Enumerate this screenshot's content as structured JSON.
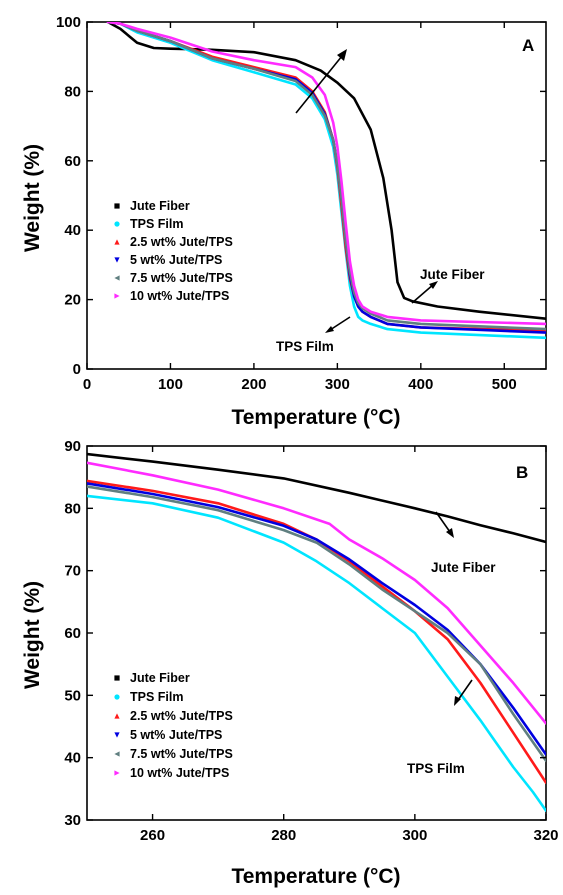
{
  "chart_data": [
    {
      "type": "line",
      "panel_label": "A",
      "xlabel": "Temperature (°C)",
      "ylabel": "Weight (%)",
      "xlim": [
        0,
        550
      ],
      "ylim": [
        0,
        100
      ],
      "xticks": [
        0,
        100,
        200,
        300,
        400,
        500
      ],
      "yticks": [
        0,
        20,
        40,
        60,
        80,
        100
      ],
      "legend_position": "bottom-left",
      "series": [
        {
          "name": "Jute Fiber",
          "color": "#000000",
          "x": [
            25,
            40,
            60,
            80,
            100,
            120,
            150,
            200,
            250,
            280,
            300,
            320,
            340,
            355,
            365,
            372,
            380,
            390,
            420,
            470,
            550
          ],
          "y": [
            100,
            98,
            94,
            92.5,
            92.3,
            92.2,
            92,
            91.3,
            89,
            86,
            82.5,
            78,
            69,
            55,
            40,
            25,
            20.5,
            19.5,
            18,
            16.5,
            14.5
          ]
        },
        {
          "name": "TPS Film",
          "color": "#00e5ff",
          "x": [
            25,
            40,
            60,
            100,
            150,
            200,
            250,
            270,
            285,
            295,
            300,
            305,
            310,
            315,
            320,
            325,
            330,
            340,
            360,
            400,
            550
          ],
          "y": [
            100,
            99.5,
            97,
            94,
            89,
            85.5,
            82,
            78,
            72,
            64,
            56,
            45,
            34,
            24,
            18,
            15,
            14,
            13,
            11.5,
            10.5,
            9
          ]
        },
        {
          "name": "2.5 wt% Jute/TPS",
          "color": "#ff1a1a",
          "x": [
            25,
            40,
            60,
            100,
            150,
            200,
            250,
            270,
            285,
            295,
            300,
            305,
            310,
            315,
            320,
            325,
            330,
            340,
            360,
            400,
            550
          ],
          "y": [
            100,
            99.5,
            97.5,
            94.5,
            90,
            87,
            84,
            80,
            74,
            66,
            58,
            47,
            35,
            26,
            21,
            18,
            16.5,
            15,
            13,
            12,
            11
          ]
        },
        {
          "name": "5 wt% Jute/TPS",
          "color": "#0000e0",
          "x": [
            25,
            40,
            60,
            100,
            150,
            200,
            250,
            270,
            285,
            295,
            300,
            305,
            310,
            315,
            320,
            325,
            330,
            340,
            360,
            400,
            550
          ],
          "y": [
            100,
            99.5,
            97.5,
            94.5,
            89.5,
            86.5,
            83.5,
            79.5,
            73.5,
            66,
            59,
            49,
            37,
            27,
            21,
            18,
            16.5,
            15,
            13,
            12,
            10.5
          ]
        },
        {
          "name": "7.5 wt% Jute/TPS",
          "color": "#607f80",
          "x": [
            25,
            40,
            60,
            100,
            150,
            200,
            250,
            270,
            285,
            295,
            300,
            305,
            310,
            315,
            320,
            325,
            330,
            340,
            360,
            400,
            550
          ],
          "y": [
            100,
            99.5,
            97.5,
            94.5,
            89.5,
            86.5,
            83,
            79,
            73,
            66,
            59,
            49,
            37,
            28,
            22,
            19,
            17.5,
            16,
            14,
            13,
            11.5
          ]
        },
        {
          "name": "10 wt% Jute/TPS",
          "color": "#ff2bff",
          "x": [
            25,
            40,
            60,
            100,
            150,
            200,
            250,
            270,
            285,
            295,
            300,
            305,
            310,
            315,
            320,
            325,
            330,
            340,
            360,
            400,
            550
          ],
          "y": [
            100,
            99.5,
            98,
            95.5,
            91.5,
            89,
            87,
            84,
            79,
            71,
            64,
            54,
            42,
            31,
            24,
            20,
            18,
            16.5,
            15,
            14,
            13
          ]
        }
      ],
      "annotations": [
        {
          "text": "Jute Fiber"
        },
        {
          "text": "TPS Film"
        }
      ]
    },
    {
      "type": "line",
      "panel_label": "B",
      "xlabel": "Temperature (°C)",
      "ylabel": "Weight (%)",
      "xlim": [
        250,
        320
      ],
      "ylim": [
        30,
        90
      ],
      "xticks": [
        260,
        280,
        300,
        320
      ],
      "yticks": [
        30,
        40,
        50,
        60,
        70,
        80,
        90
      ],
      "legend_position": "bottom-left",
      "series": [
        {
          "name": "Jute Fiber",
          "color": "#000000",
          "x": [
            250,
            260,
            270,
            280,
            290,
            300,
            305,
            310,
            315,
            320
          ],
          "y": [
            88.7,
            87.5,
            86.2,
            84.8,
            82.5,
            80,
            78.7,
            77.3,
            76,
            74.6
          ]
        },
        {
          "name": "TPS Film",
          "color": "#00e5ff",
          "x": [
            250,
            260,
            270,
            280,
            285,
            290,
            295,
            300,
            305,
            310,
            312,
            315,
            318,
            320
          ],
          "y": [
            82,
            80.8,
            78.5,
            74.5,
            71.5,
            68,
            64,
            60,
            53,
            46,
            43,
            38.5,
            34.5,
            31.5
          ]
        },
        {
          "name": "2.5 wt% Jute/TPS",
          "color": "#ff1a1a",
          "x": [
            250,
            260,
            270,
            280,
            285,
            290,
            295,
            300,
            305,
            310,
            315,
            320
          ],
          "y": [
            84.4,
            82.8,
            80.8,
            77.5,
            75,
            71.5,
            67.5,
            63.5,
            59,
            52,
            44,
            36
          ]
        },
        {
          "name": "5 wt% Jute/TPS",
          "color": "#0000e0",
          "x": [
            250,
            260,
            270,
            280,
            285,
            290,
            295,
            300,
            305,
            310,
            315,
            320
          ],
          "y": [
            84,
            82.3,
            80.2,
            77.2,
            75,
            71.8,
            68,
            64.5,
            60.5,
            55,
            48,
            40.5
          ]
        },
        {
          "name": "7.5 wt% Jute/TPS",
          "color": "#607f80",
          "x": [
            250,
            260,
            270,
            280,
            285,
            290,
            295,
            300,
            305,
            310,
            315,
            320
          ],
          "y": [
            83.5,
            81.8,
            79.7,
            76.5,
            74.5,
            71,
            67,
            63.5,
            60,
            55,
            47,
            39.5
          ]
        },
        {
          "name": "10 wt% Jute/TPS",
          "color": "#ff2bff",
          "x": [
            250,
            260,
            270,
            280,
            287,
            290,
            295,
            300,
            305,
            310,
            315,
            320
          ],
          "y": [
            87.3,
            85.3,
            83,
            80,
            77.5,
            75,
            72,
            68.5,
            64,
            58,
            52,
            45.5
          ]
        }
      ],
      "annotations": [
        {
          "text": "Jute Fiber"
        },
        {
          "text": "TPS Film"
        }
      ]
    }
  ]
}
